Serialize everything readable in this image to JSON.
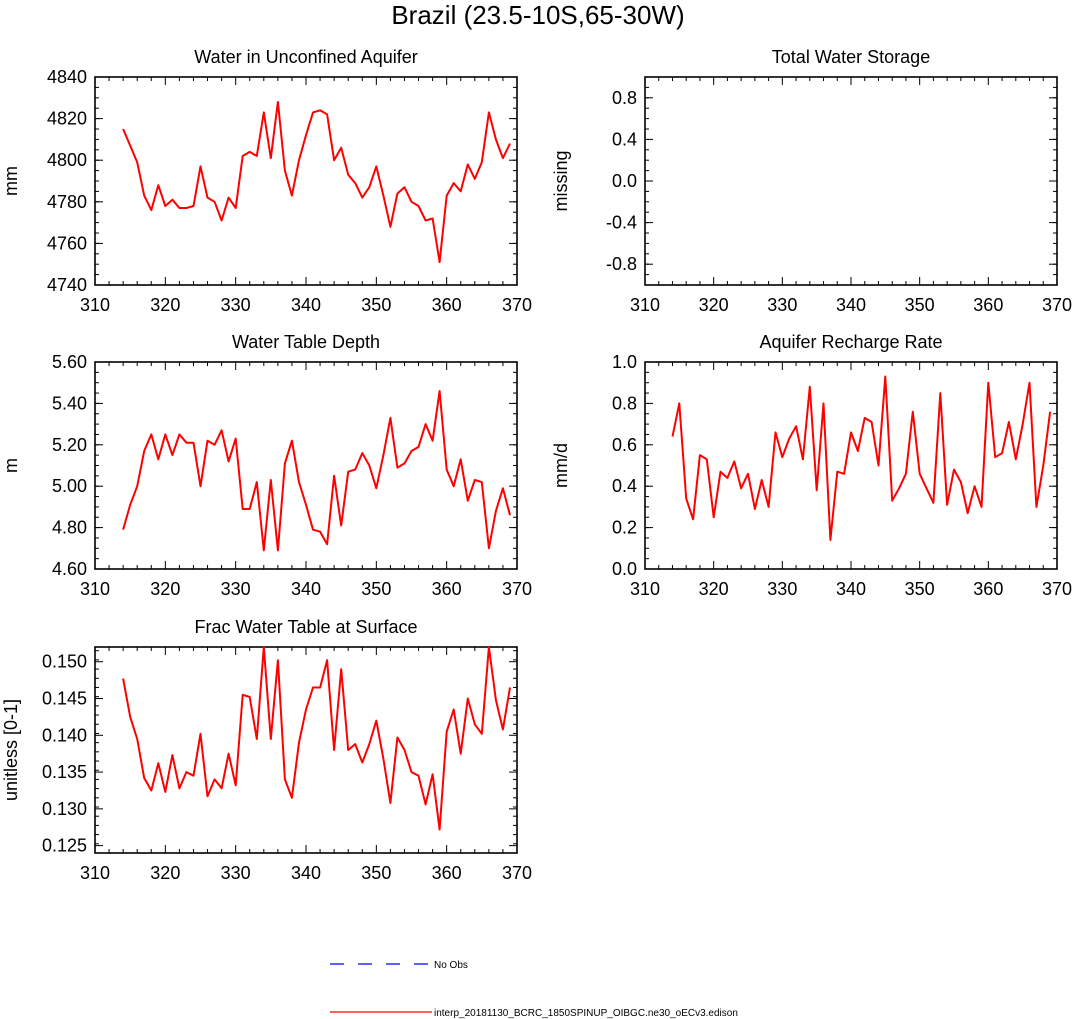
{
  "figure": {
    "title": "Brazil (23.5-10S,65-30W)",
    "legend": [
      {
        "label": "No Obs",
        "color": "#0000ff",
        "style": "dashed"
      },
      {
        "label": "interp_20181130_BCRC_1850SPINUP_OIBGC.ne30_oECv3.edison",
        "color": "#ff0000",
        "style": "solid"
      }
    ]
  },
  "colors": {
    "series": "#ff0000",
    "obs": "#0000ff",
    "axis": "#000000"
  },
  "chart_data": [
    {
      "id": "unconfined",
      "type": "line",
      "title": "Water in Unconfined Aquifer",
      "xlabel": "",
      "ylabel": "mm",
      "xlim": [
        310,
        370
      ],
      "ylim": [
        4740,
        4840
      ],
      "xticks": [
        "310",
        "320",
        "330",
        "340",
        "350",
        "360",
        "370"
      ],
      "yticks": [
        "4740",
        "4760",
        "4780",
        "4800",
        "4820",
        "4840"
      ],
      "x": [
        314,
        315,
        316,
        317,
        318,
        319,
        320,
        321,
        322,
        323,
        324,
        325,
        326,
        327,
        328,
        329,
        330,
        331,
        332,
        333,
        334,
        335,
        336,
        337,
        338,
        339,
        340,
        341,
        342,
        343,
        344,
        345,
        346,
        347,
        348,
        349,
        350,
        351,
        352,
        353,
        354,
        355,
        356,
        357,
        358,
        359,
        360,
        361,
        362,
        363,
        364,
        365,
        366,
        367,
        368,
        369
      ],
      "values": [
        4815,
        4807,
        4799,
        4783,
        4776,
        4788,
        4778,
        4781,
        4777,
        4777,
        4778,
        4797,
        4782,
        4780,
        4771,
        4782,
        4777,
        4802,
        4804,
        4802,
        4823,
        4801,
        4828,
        4795,
        4783,
        4800,
        4812,
        4823,
        4824,
        4822,
        4800,
        4806,
        4793,
        4789,
        4782,
        4787,
        4797,
        4783,
        4768,
        4784,
        4787,
        4780,
        4778,
        4771,
        4772,
        4751,
        4783,
        4789,
        4785,
        4798,
        4791,
        4799,
        4823,
        4810,
        4801,
        4808
      ]
    },
    {
      "id": "tws",
      "type": "line",
      "title": "Total Water Storage",
      "xlabel": "",
      "ylabel": "missing",
      "xlim": [
        310,
        370
      ],
      "ylim": [
        -1,
        1
      ],
      "xticks": [
        "310",
        "320",
        "330",
        "340",
        "350",
        "360",
        "370"
      ],
      "yticks": [
        "-0.8",
        "-0.4",
        "0.0",
        "0.4",
        "0.8"
      ],
      "x": [],
      "values": []
    },
    {
      "id": "wtd",
      "type": "line",
      "title": "Water Table Depth",
      "xlabel": "",
      "ylabel": "m",
      "xlim": [
        310,
        370
      ],
      "ylim": [
        4.6,
        5.6
      ],
      "xticks": [
        "310",
        "320",
        "330",
        "340",
        "350",
        "360",
        "370"
      ],
      "yticks": [
        "4.60",
        "4.80",
        "5.00",
        "5.20",
        "5.40",
        "5.60"
      ],
      "x": [
        314,
        315,
        316,
        317,
        318,
        319,
        320,
        321,
        322,
        323,
        324,
        325,
        326,
        327,
        328,
        329,
        330,
        331,
        332,
        333,
        334,
        335,
        336,
        337,
        338,
        339,
        340,
        341,
        342,
        343,
        344,
        345,
        346,
        347,
        348,
        349,
        350,
        351,
        352,
        353,
        354,
        355,
        356,
        357,
        358,
        359,
        360,
        361,
        362,
        363,
        364,
        365,
        366,
        367,
        368,
        369
      ],
      "values": [
        4.79,
        4.91,
        5.0,
        5.17,
        5.25,
        5.13,
        5.25,
        5.15,
        5.25,
        5.21,
        5.21,
        5.0,
        5.22,
        5.2,
        5.27,
        5.12,
        5.23,
        4.89,
        4.89,
        5.02,
        4.69,
        5.03,
        4.69,
        5.11,
        5.22,
        5.02,
        4.91,
        4.79,
        4.78,
        4.72,
        5.05,
        4.81,
        5.07,
        5.08,
        5.16,
        5.1,
        4.99,
        5.15,
        5.33,
        5.09,
        5.11,
        5.17,
        5.19,
        5.3,
        5.22,
        5.46,
        5.08,
        5.0,
        5.13,
        4.93,
        5.03,
        5.02,
        4.7,
        4.88,
        4.99,
        4.86
      ]
    },
    {
      "id": "recharge",
      "type": "line",
      "title": "Aquifer Recharge Rate",
      "xlabel": "",
      "ylabel": "mm/d",
      "xlim": [
        310,
        370
      ],
      "ylim": [
        0,
        1
      ],
      "xticks": [
        "310",
        "320",
        "330",
        "340",
        "350",
        "360",
        "370"
      ],
      "yticks": [
        "0.0",
        "0.2",
        "0.4",
        "0.6",
        "0.8",
        "1.0"
      ],
      "x": [
        314,
        315,
        316,
        317,
        318,
        319,
        320,
        321,
        322,
        323,
        324,
        325,
        326,
        327,
        328,
        329,
        330,
        331,
        332,
        333,
        334,
        335,
        336,
        337,
        338,
        339,
        340,
        341,
        342,
        343,
        344,
        345,
        346,
        347,
        348,
        349,
        350,
        351,
        352,
        353,
        354,
        355,
        356,
        357,
        358,
        359,
        360,
        361,
        362,
        363,
        364,
        365,
        366,
        367,
        368,
        369
      ],
      "values": [
        0.64,
        0.8,
        0.34,
        0.24,
        0.55,
        0.53,
        0.25,
        0.47,
        0.44,
        0.52,
        0.39,
        0.46,
        0.29,
        0.43,
        0.3,
        0.66,
        0.54,
        0.63,
        0.69,
        0.53,
        0.88,
        0.38,
        0.8,
        0.14,
        0.47,
        0.46,
        0.66,
        0.57,
        0.73,
        0.71,
        0.5,
        0.93,
        0.33,
        0.39,
        0.46,
        0.76,
        0.46,
        0.39,
        0.32,
        0.85,
        0.31,
        0.48,
        0.42,
        0.27,
        0.4,
        0.3,
        0.9,
        0.54,
        0.56,
        0.71,
        0.53,
        0.7,
        0.9,
        0.3,
        0.5,
        0.76
      ]
    },
    {
      "id": "fracwt",
      "type": "line",
      "title": "Frac Water Table at Surface",
      "xlabel": "",
      "ylabel": "unitless [0-1]",
      "xlim": [
        310,
        370
      ],
      "ylim": [
        0.124,
        0.152
      ],
      "xticks": [
        "310",
        "320",
        "330",
        "340",
        "350",
        "360",
        "370"
      ],
      "yticks": [
        "0.125",
        "0.130",
        "0.135",
        "0.140",
        "0.145",
        "0.150"
      ],
      "x": [
        314,
        315,
        316,
        317,
        318,
        319,
        320,
        321,
        322,
        323,
        324,
        325,
        326,
        327,
        328,
        329,
        330,
        331,
        332,
        333,
        334,
        335,
        336,
        337,
        338,
        339,
        340,
        341,
        342,
        343,
        344,
        345,
        346,
        347,
        348,
        349,
        350,
        351,
        352,
        353,
        354,
        355,
        356,
        357,
        358,
        359,
        360,
        361,
        362,
        363,
        364,
        365,
        366,
        367,
        368,
        369
      ],
      "values": [
        0.1477,
        0.1425,
        0.1395,
        0.1342,
        0.1325,
        0.1362,
        0.1323,
        0.1373,
        0.1328,
        0.135,
        0.1345,
        0.1402,
        0.1317,
        0.134,
        0.1328,
        0.1375,
        0.1332,
        0.1455,
        0.1452,
        0.1395,
        0.152,
        0.1395,
        0.1502,
        0.134,
        0.1315,
        0.139,
        0.1435,
        0.1465,
        0.1465,
        0.1502,
        0.138,
        0.149,
        0.138,
        0.1388,
        0.1363,
        0.1388,
        0.142,
        0.1368,
        0.1308,
        0.1397,
        0.138,
        0.135,
        0.1345,
        0.1306,
        0.1347,
        0.1272,
        0.1405,
        0.1435,
        0.1375,
        0.145,
        0.1415,
        0.1402,
        0.152,
        0.1448,
        0.1408,
        0.1465
      ]
    }
  ]
}
